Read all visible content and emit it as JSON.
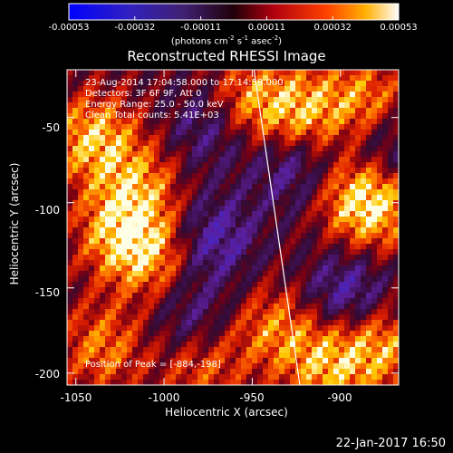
{
  "chart_data": {
    "type": "heatmap",
    "title": "Reconstructed RHESSI Image",
    "xlabel": "Heliocentric X (arcsec)",
    "ylabel": "Heliocentric Y (arcsec)",
    "xlim": [
      -1055,
      -867
    ],
    "ylim": [
      -207,
      -22
    ],
    "x_ticks": [
      "-1050",
      "-1000",
      "-950",
      "-900"
    ],
    "x_tick_values": [
      -1050,
      -1000,
      -950,
      -900
    ],
    "y_ticks": [
      "-50",
      "-100",
      "-150",
      "-200"
    ],
    "y_tick_values": [
      -50,
      -100,
      -150,
      -200
    ],
    "colorbar": {
      "min": -0.00053,
      "max": 0.00053,
      "ticks": [
        "-0.00053",
        "-0.00032",
        "-0.00011",
        "0.00011",
        "0.00032",
        "0.00053"
      ],
      "units_prefix": "(photons cm",
      "units_exp1": "-2",
      "units_mid": " s",
      "units_exp2": "-1",
      "units_mid2": " asec",
      "units_exp3": "-2",
      "units_suffix": ")"
    },
    "annotations": {
      "time_range": "23-Aug-2014 17:04:58.000 to 17:14:58.000",
      "detectors": "Detectors: 3F 6F 9F, Att 0",
      "energy": "Energy Range: 25.0 - 50.0 keV",
      "clean": "Clean     Total counts: 5.41E+03",
      "peak": "Position of Peak = [-884,-198]"
    },
    "peak_position": [
      -884,
      -198
    ],
    "limb_line": [
      [
        -949,
        -22
      ],
      [
        -923,
        -207
      ]
    ],
    "colors": {
      "colorbar_low": "#0000ff",
      "colorbar_mid": "#ff2000",
      "colorbar_high": "#ffffff"
    }
  },
  "footer": {
    "timestamp": "22-Jan-2017 16:50"
  }
}
